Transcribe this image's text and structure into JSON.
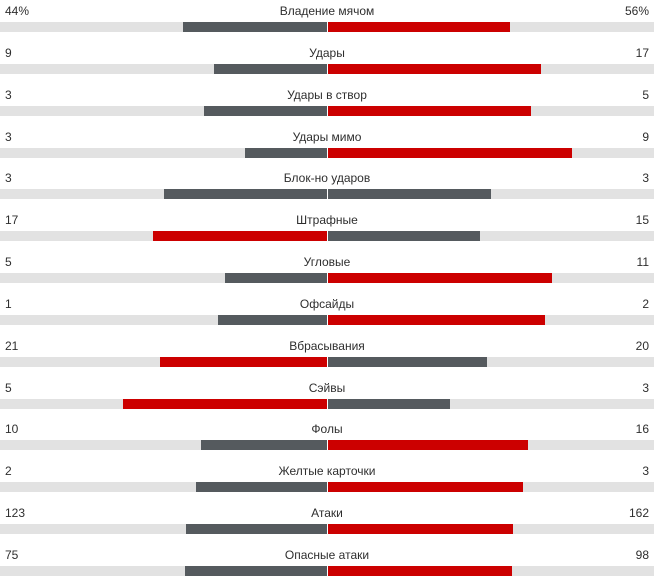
{
  "chart_data": {
    "type": "bar",
    "layout": "paired-horizontal-bars-from-center",
    "legend": "off",
    "grid": "off",
    "categories": [
      "Владение мячом",
      "Удары",
      "Удары в створ",
      "Удары мимо",
      "Блок-но ударов",
      "Штрафные",
      "Угловые",
      "Офсайды",
      "Вбрасывания",
      "Сэйвы",
      "Фолы",
      "Желтые карточки",
      "Атаки",
      "Опасные атаки"
    ],
    "series": [
      {
        "name": "left",
        "values": [
          44,
          9,
          3,
          3,
          3,
          17,
          5,
          1,
          21,
          5,
          10,
          2,
          123,
          75
        ],
        "display": [
          "44%",
          "9",
          "3",
          "3",
          "3",
          "17",
          "5",
          "1",
          "21",
          "5",
          "10",
          "2",
          "123",
          "75"
        ]
      },
      {
        "name": "right",
        "values": [
          56,
          17,
          5,
          9,
          3,
          15,
          11,
          2,
          20,
          3,
          16,
          3,
          162,
          98
        ],
        "display": [
          "56%",
          "17",
          "5",
          "9",
          "3",
          "15",
          "11",
          "2",
          "20",
          "3",
          "16",
          "3",
          "162",
          "98"
        ]
      }
    ],
    "colors": {
      "track": "#e2e2e2",
      "leading_bar": "#cc0000",
      "trailing_bar": "#555a5e"
    },
    "bar_rule": "each bar width = value / (left + right) of its half of the row; the side with the higher value is red, the lower is dark gray, equal values both dark gray"
  }
}
